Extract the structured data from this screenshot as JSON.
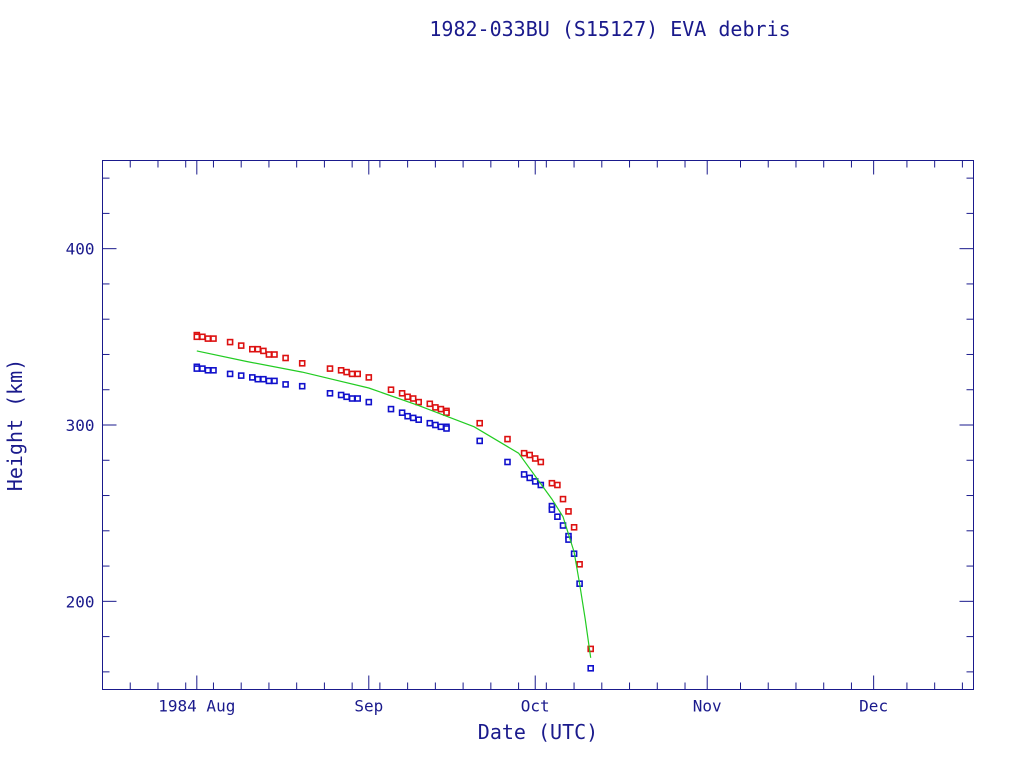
{
  "chart_data": {
    "type": "scatter",
    "title": "1982-033BU (S15127) EVA debris",
    "xlabel": "Date (UTC)",
    "ylabel": "Height (km)",
    "x_unit": "date",
    "xlim": [
      "1984-07-15",
      "1984-12-19"
    ],
    "ylim": [
      150,
      450
    ],
    "x_tick_labels": [
      {
        "date": "1984-08-01",
        "label": "1984 Aug"
      },
      {
        "date": "1984-09-01",
        "label": "Sep"
      },
      {
        "date": "1984-10-01",
        "label": "Oct"
      },
      {
        "date": "1984-11-01",
        "label": "Nov"
      },
      {
        "date": "1984-12-01",
        "label": "Dec"
      }
    ],
    "y_ticks": [
      200,
      300,
      400
    ],
    "grid": false,
    "legend": "none",
    "series": [
      {
        "color": "#dd1111",
        "marker": "square",
        "points": [
          [
            "1984-08-01",
            351
          ],
          [
            "1984-08-01",
            350
          ],
          [
            "1984-08-02",
            350
          ],
          [
            "1984-08-03",
            349
          ],
          [
            "1984-08-04",
            349
          ],
          [
            "1984-08-07",
            347
          ],
          [
            "1984-08-09",
            345
          ],
          [
            "1984-08-11",
            343
          ],
          [
            "1984-08-12",
            343
          ],
          [
            "1984-08-13",
            342
          ],
          [
            "1984-08-14",
            340
          ],
          [
            "1984-08-15",
            340
          ],
          [
            "1984-08-17",
            338
          ],
          [
            "1984-08-20",
            335
          ],
          [
            "1984-08-25",
            332
          ],
          [
            "1984-08-27",
            331
          ],
          [
            "1984-08-28",
            330
          ],
          [
            "1984-08-29",
            329
          ],
          [
            "1984-08-30",
            329
          ],
          [
            "1984-09-01",
            327
          ],
          [
            "1984-09-05",
            320
          ],
          [
            "1984-09-07",
            318
          ],
          [
            "1984-09-08",
            316
          ],
          [
            "1984-09-09",
            315
          ],
          [
            "1984-09-10",
            313
          ],
          [
            "1984-09-12",
            312
          ],
          [
            "1984-09-13",
            310
          ],
          [
            "1984-09-14",
            309
          ],
          [
            "1984-09-15",
            308
          ],
          [
            "1984-09-15",
            307
          ],
          [
            "1984-09-21",
            301
          ],
          [
            "1984-09-26",
            292
          ],
          [
            "1984-09-29",
            284
          ],
          [
            "1984-09-30",
            283
          ],
          [
            "1984-10-01",
            281
          ],
          [
            "1984-10-02",
            279
          ],
          [
            "1984-10-04",
            267
          ],
          [
            "1984-10-05",
            266
          ],
          [
            "1984-10-06",
            258
          ],
          [
            "1984-10-07",
            251
          ],
          [
            "1984-10-08",
            242
          ],
          [
            "1984-10-09",
            221
          ],
          [
            "1984-10-11",
            173
          ]
        ]
      },
      {
        "color": "#1111cc",
        "marker": "square",
        "points": [
          [
            "1984-08-01",
            333
          ],
          [
            "1984-08-01",
            332
          ],
          [
            "1984-08-02",
            332
          ],
          [
            "1984-08-03",
            331
          ],
          [
            "1984-08-04",
            331
          ],
          [
            "1984-08-07",
            329
          ],
          [
            "1984-08-09",
            328
          ],
          [
            "1984-08-11",
            327
          ],
          [
            "1984-08-12",
            326
          ],
          [
            "1984-08-13",
            326
          ],
          [
            "1984-08-14",
            325
          ],
          [
            "1984-08-15",
            325
          ],
          [
            "1984-08-17",
            323
          ],
          [
            "1984-08-20",
            322
          ],
          [
            "1984-08-25",
            318
          ],
          [
            "1984-08-27",
            317
          ],
          [
            "1984-08-28",
            316
          ],
          [
            "1984-08-29",
            315
          ],
          [
            "1984-08-30",
            315
          ],
          [
            "1984-09-01",
            313
          ],
          [
            "1984-09-05",
            309
          ],
          [
            "1984-09-07",
            307
          ],
          [
            "1984-09-08",
            305
          ],
          [
            "1984-09-09",
            304
          ],
          [
            "1984-09-10",
            303
          ],
          [
            "1984-09-12",
            301
          ],
          [
            "1984-09-13",
            300
          ],
          [
            "1984-09-14",
            299
          ],
          [
            "1984-09-15",
            299
          ],
          [
            "1984-09-15",
            298
          ],
          [
            "1984-09-21",
            291
          ],
          [
            "1984-09-26",
            279
          ],
          [
            "1984-09-29",
            272
          ],
          [
            "1984-09-30",
            270
          ],
          [
            "1984-10-01",
            268
          ],
          [
            "1984-10-02",
            266
          ],
          [
            "1984-10-04",
            254
          ],
          [
            "1984-10-04",
            252
          ],
          [
            "1984-10-05",
            248
          ],
          [
            "1984-10-06",
            243
          ],
          [
            "1984-10-07",
            237
          ],
          [
            "1984-10-07",
            235
          ],
          [
            "1984-10-08",
            227
          ],
          [
            "1984-10-09",
            210
          ],
          [
            "1984-10-11",
            162
          ]
        ]
      },
      {
        "color": "#22cc22",
        "marker": "line",
        "points": [
          [
            "1984-08-01",
            342
          ],
          [
            "1984-08-10",
            336
          ],
          [
            "1984-08-20",
            330
          ],
          [
            "1984-09-01",
            321
          ],
          [
            "1984-09-10",
            311
          ],
          [
            "1984-09-20",
            299
          ],
          [
            "1984-09-28",
            284
          ],
          [
            "1984-10-04",
            258
          ],
          [
            "1984-10-06",
            248
          ],
          [
            "1984-10-08",
            228
          ],
          [
            "1984-10-09",
            210
          ],
          [
            "1984-10-10",
            190
          ],
          [
            "1984-10-11",
            168
          ]
        ]
      }
    ]
  }
}
